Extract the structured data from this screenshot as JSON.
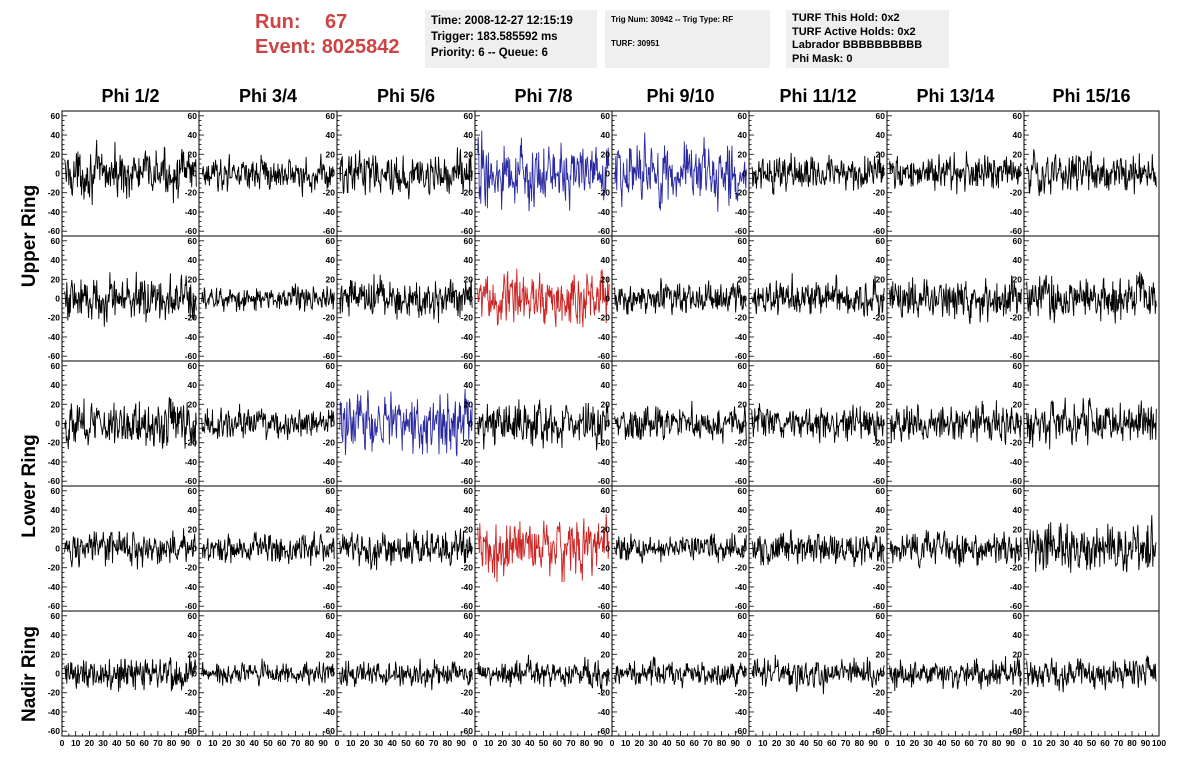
{
  "header": {
    "run_label": "Run:",
    "run_value": "67",
    "event_label": "Event:",
    "event_value": "8025842",
    "box1": [
      "Time: 2008-12-27 12:15:19",
      "Trigger: 183.585592 ms",
      "Priority: 6 -- Queue: 6"
    ],
    "box2": [
      "Trig Num: 30942 -- Trig Type: RF",
      "",
      "TURF: 30951"
    ],
    "box3": [
      "TURF This Hold: 0x2",
      "TURF Active Holds: 0x2",
      "Labrador BBBBBBBBBB",
      "Phi Mask: 0"
    ],
    "accent_color": "#cc4444",
    "box_color": "#efefef"
  },
  "chart_data": {
    "type": "line",
    "title": "",
    "columns": [
      "Phi 1/2",
      "Phi 3/4",
      "Phi 5/6",
      "Phi 7/8",
      "Phi 9/10",
      "Phi 11/12",
      "Phi 13/14",
      "Phi 15/16"
    ],
    "ring_labels": [
      {
        "label": "Upper Ring",
        "rows": [
          0,
          1
        ]
      },
      {
        "label": "Lower Ring",
        "rows": [
          2,
          3
        ]
      },
      {
        "label": "Nadir Ring",
        "rows": [
          4
        ]
      }
    ],
    "xlim": [
      0,
      100
    ],
    "ylim": [
      -65,
      65
    ],
    "x_ticks": [
      "0",
      "10",
      "20",
      "30",
      "40",
      "50",
      "60",
      "70",
      "80",
      "90",
      "100"
    ],
    "y_ticks": [
      "-60",
      "-40",
      "-20",
      "0",
      "20",
      "40",
      "60"
    ],
    "trace_colors": {
      "normal": "#000000",
      "trigger": "#2a2aa0",
      "coincidence": "#cc2222"
    },
    "panel_colors": [
      [
        "normal",
        "normal",
        "normal",
        "trigger",
        "trigger",
        "normal",
        "normal",
        "normal"
      ],
      [
        "normal",
        "normal",
        "normal",
        "coincidence",
        "normal",
        "normal",
        "normal",
        "normal"
      ],
      [
        "normal",
        "normal",
        "trigger",
        "normal",
        "normal",
        "normal",
        "normal",
        "normal"
      ],
      [
        "normal",
        "normal",
        "normal",
        "coincidence",
        "normal",
        "normal",
        "normal",
        "normal"
      ],
      [
        "normal",
        "normal",
        "normal",
        "normal",
        "normal",
        "normal",
        "normal",
        "normal"
      ]
    ],
    "panel_amplitudes": [
      [
        22,
        15,
        20,
        30,
        30,
        17,
        17,
        19
      ],
      [
        22,
        12,
        20,
        25,
        15,
        17,
        19,
        21
      ],
      [
        22,
        14,
        27,
        20,
        16,
        17,
        17,
        21
      ],
      [
        16,
        15,
        17,
        27,
        12,
        15,
        15,
        22
      ],
      [
        17,
        10,
        12,
        13,
        12,
        14,
        14,
        14
      ]
    ],
    "samples_per_trace": 260
  }
}
